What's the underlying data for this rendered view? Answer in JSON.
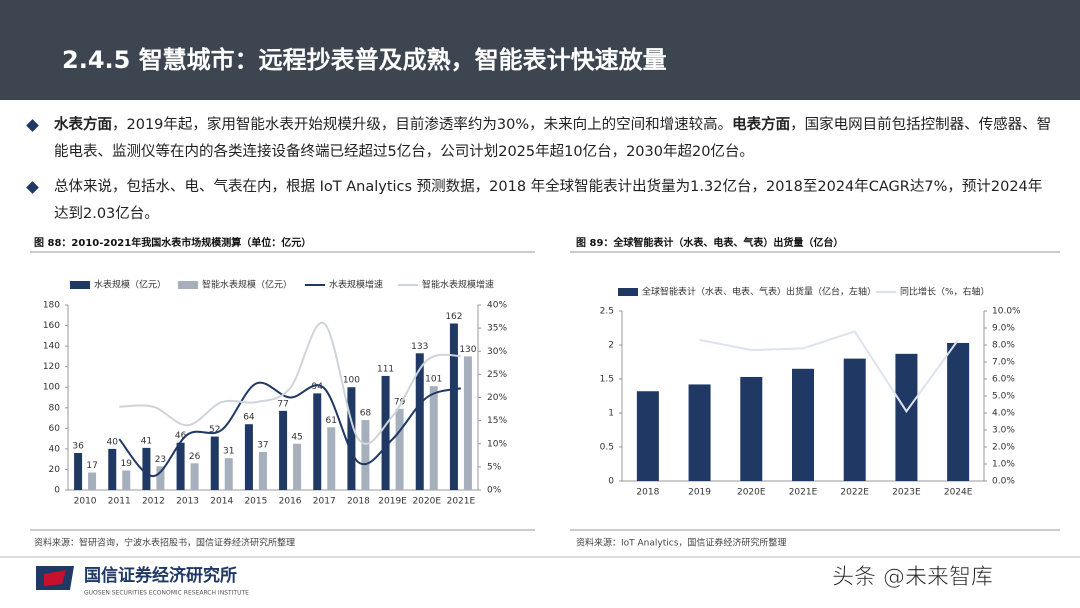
{
  "header": {
    "title": "2.4.5 智慧城市：远程抄表普及成熟，智能表计快速放量"
  },
  "bullets": [
    [
      {
        "text": "水表方面",
        "bold": true
      },
      {
        "text": "，2019年起，家用智能水表开始规模升级，目前渗透率约为30%，未来向上的空间和增速较高。"
      },
      {
        "text": "电表方面",
        "bold": true
      },
      {
        "text": "，国家电网目前包括控制器、传感器、智能电表、监测仪等在内的各类连接设备终端已经超过5亿台，公司计划2025年超10亿台，2030年超20亿台。"
      }
    ],
    [
      {
        "text": "总体来说，包括水、电、气表在内，根据 IoT Analytics 预测数据，2018 年全球智能表计出货量为1.32亿台，2018至2024年CAGR达7%，预计2024年达到2.03亿台。"
      }
    ]
  ],
  "chart_data": [
    {
      "type": "bar",
      "title": "图 88：2010-2021年我国水表市场规模测算（单位：亿元）",
      "source": "资料来源：智研咨询，宁波水表招股书，国信证券经济研究所整理",
      "categories": [
        "2010",
        "2011",
        "2012",
        "2013",
        "2014",
        "2015",
        "2016",
        "2017",
        "2018",
        "2019E",
        "2020E",
        "2021E"
      ],
      "series": [
        {
          "name": "水表规模（亿元）",
          "type": "bar",
          "color": "#1f3864",
          "data_labels": true,
          "values": [
            36,
            40,
            41,
            46,
            52,
            64,
            77,
            94,
            100,
            111,
            133,
            162
          ]
        },
        {
          "name": "智能水表规模（亿元）",
          "type": "bar",
          "color": "#a6b0bd",
          "data_labels": true,
          "values": [
            17,
            19,
            23,
            26,
            31,
            37,
            45,
            61,
            68,
            79,
            101,
            130
          ]
        },
        {
          "name": "水表规模增速",
          "type": "line",
          "axis": "y2",
          "smooth": true,
          "color": "#1f3864",
          "values": [
            null,
            11,
            3,
            12,
            13,
            23,
            20,
            22,
            6,
            11,
            20,
            22
          ]
        },
        {
          "name": "智能水表规模增速",
          "type": "line",
          "axis": "y2",
          "smooth": true,
          "color": "#cfd4db",
          "values": [
            null,
            18,
            18,
            14,
            19,
            19,
            22,
            36,
            11,
            16,
            28,
            29
          ]
        }
      ],
      "ylim": [
        0,
        180
      ],
      "yticks": [
        0,
        20,
        40,
        60,
        80,
        100,
        120,
        140,
        160,
        180
      ],
      "y2lim": [
        0,
        40
      ],
      "y2ticks": [
        {
          "value": 0,
          "label": "0%"
        },
        {
          "value": 5,
          "label": "5%"
        },
        {
          "value": 10,
          "label": "10%"
        },
        {
          "value": 15,
          "label": "15%"
        },
        {
          "value": 20,
          "label": "20%"
        },
        {
          "value": 25,
          "label": "25%"
        },
        {
          "value": 30,
          "label": "30%"
        },
        {
          "value": 35,
          "label": "35%"
        },
        {
          "value": 40,
          "label": "40%"
        }
      ]
    },
    {
      "type": "bar",
      "title": "图 89：全球智能表计（水表、电表、气表）出货量（亿台）",
      "source": "资料来源：IoT Analytics，国信证券经济研究所整理",
      "categories": [
        "2018",
        "2019",
        "2020E",
        "2021E",
        "2022E",
        "2023E",
        "2024E"
      ],
      "series": [
        {
          "name": "全球智能表计（水表、电表、气表）出货量（亿台，左轴）",
          "type": "bar",
          "color": "#1f3864",
          "values": [
            1.32,
            1.42,
            1.53,
            1.65,
            1.8,
            1.87,
            2.03
          ]
        },
        {
          "name": "同比增长（%，右轴）",
          "type": "line",
          "axis": "y2",
          "color": "#dde3ee",
          "values": [
            null,
            8.3,
            7.7,
            7.8,
            8.8,
            4.1,
            8.3
          ]
        }
      ],
      "ylim": [
        0,
        2.5
      ],
      "yticks": [
        0,
        0.5,
        1,
        1.5,
        2,
        2.5
      ],
      "y2lim": [
        0,
        10
      ],
      "y2ticks": [
        {
          "value": 0,
          "label": "0.0%"
        },
        {
          "value": 1,
          "label": "1.0%"
        },
        {
          "value": 2,
          "label": "2.0%"
        },
        {
          "value": 3,
          "label": "3.0%"
        },
        {
          "value": 4,
          "label": "4.0%"
        },
        {
          "value": 5,
          "label": "5.0%"
        },
        {
          "value": 6,
          "label": "6.0%"
        },
        {
          "value": 7,
          "label": "7.0%"
        },
        {
          "value": 8,
          "label": "8.0%"
        },
        {
          "value": 9,
          "label": "9.0%"
        },
        {
          "value": 10,
          "label": "10.0%"
        }
      ]
    }
  ],
  "footer": {
    "org": "国信证券经济研究所",
    "org_en": "GUOSEN SECURITIES ECONOMIC RESEARCH INSTITUTE",
    "watermark": "头条 @未来智库"
  }
}
